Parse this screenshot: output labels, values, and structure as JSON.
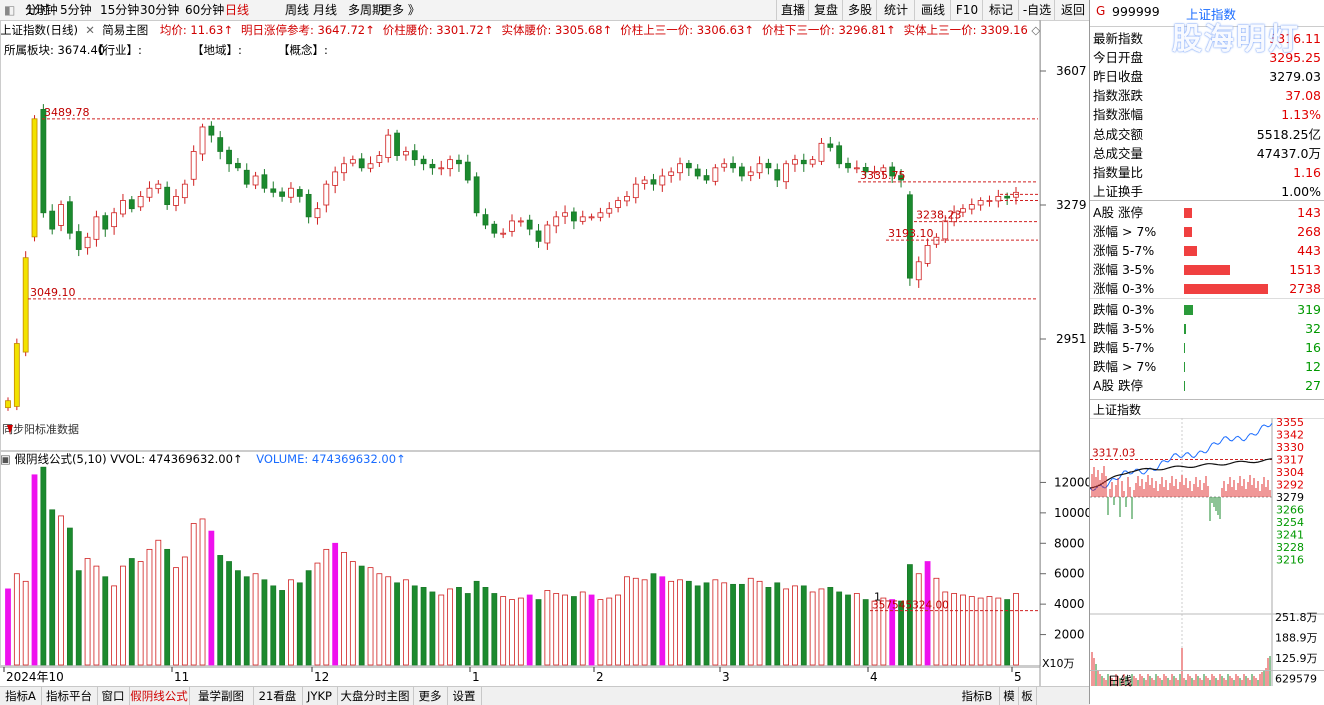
{
  "toolbar": {
    "periods": [
      "分时",
      "1分钟",
      "5分钟",
      "15分钟",
      "30分钟",
      "60分钟",
      "日线",
      "周线",
      "月线",
      "多周期",
      "更多 》"
    ],
    "active_period": "日线",
    "right_buttons": [
      "直播",
      "复盘",
      "多股",
      "统计",
      "画线",
      "F10",
      "标记",
      "-自选",
      "返回"
    ]
  },
  "info": {
    "index_name": "上证指数(日线)",
    "indicator": "简易主图",
    "items": [
      "均价: 11.63↑",
      "明日涨停参考: 3647.72↑",
      "价柱腰价: 3301.72↑",
      "实体腰价: 3305.68↑",
      "价柱上三一价: 3306.63↑",
      "价柱下三一价: 3296.81↑",
      "实体上三一价: 3309.16"
    ],
    "tags": [
      "所属板块: 3674.40",
      "【行业】:",
      "【地域】:",
      "【概念】:"
    ]
  },
  "axis": {
    "price_labels": [
      "3607",
      "3279",
      "2951"
    ],
    "vol_labels": [
      "12000",
      "10000",
      "8000",
      "6000",
      "4000",
      "2000"
    ],
    "vol_unit": "X10万",
    "months": [
      "2024年10",
      "11",
      "12",
      "1",
      "2",
      "3",
      "4",
      "5"
    ]
  },
  "annotations": {
    "high": "3489.78",
    "low": "3049.10",
    "level1": "3335.75",
    "level2": "3238.23",
    "level3": "3193.10",
    "vol_mark": "357545324.00",
    "vol_mark_label": "1",
    "overlap_text": "同步阳标准数据"
  },
  "vol_info": {
    "name": "假阴线公式(5,10)",
    "vvol": "VVOL: 474369632.00↑",
    "volume": "VOLUME: 474369632.00↑"
  },
  "bottom_tabs": [
    "指标A",
    "指标平台",
    "窗口",
    "假阴线公式",
    "量学副图",
    "21看盘",
    "JYKP",
    "大盘分时主图",
    "更多",
    "设置"
  ],
  "bottom_active": "假阴线公式",
  "bottom_right": [
    "指标B",
    "模",
    "板"
  ],
  "side": {
    "code_prefix": "G",
    "code": "999999",
    "name": "上证指数",
    "watermark": "股海明灯",
    "quotes": [
      {
        "label": "最新指数",
        "value": "3316.11",
        "color": "red"
      },
      {
        "label": "今日开盘",
        "value": "3295.25",
        "color": "red"
      },
      {
        "label": "昨日收盘",
        "value": "3279.03",
        "color": "black"
      },
      {
        "label": "指数涨跌",
        "value": "37.08",
        "color": "red"
      },
      {
        "label": "指数涨幅",
        "value": "1.13%",
        "color": "red"
      },
      {
        "label": "总成交额",
        "value": "5518.25亿",
        "color": "black"
      },
      {
        "label": "总成交量",
        "value": "47437.0万",
        "color": "black"
      },
      {
        "label": "指数量比",
        "value": "1.16",
        "color": "red"
      },
      {
        "label": "上证换手",
        "value": "1.00%",
        "color": "black"
      }
    ],
    "breadth_up": [
      {
        "label": "A股 涨停",
        "value": "143",
        "bar": 0.09
      },
      {
        "label": "涨幅 > 7%",
        "value": "268",
        "bar": 0.1
      },
      {
        "label": "涨幅 5-7%",
        "value": "443",
        "bar": 0.16
      },
      {
        "label": "涨幅 3-5%",
        "value": "1513",
        "bar": 0.55
      },
      {
        "label": "涨幅 0-3%",
        "value": "2738",
        "bar": 1.0
      }
    ],
    "breadth_down": [
      {
        "label": "跌幅 0-3%",
        "value": "319",
        "bar": 0.11
      },
      {
        "label": "跌幅 3-5%",
        "value": "32",
        "bar": 0.02
      },
      {
        "label": "跌幅 5-7%",
        "value": "16",
        "bar": 0.01
      },
      {
        "label": "跌幅 > 7%",
        "value": "12",
        "bar": 0.01
      },
      {
        "label": "A股 跌停",
        "value": "27",
        "bar": 0.01
      }
    ],
    "mini_title": "上证指数",
    "mini_ref": "3317.03",
    "mini_price_labels": [
      "3355",
      "3342",
      "3330",
      "3317",
      "3304",
      "3292",
      "3279",
      "3266",
      "3254",
      "3241",
      "3228",
      "3216"
    ],
    "mini_vol_labels": [
      "251.8万",
      "188.9万",
      "125.9万",
      "629579"
    ],
    "tab": "日线"
  }
}
